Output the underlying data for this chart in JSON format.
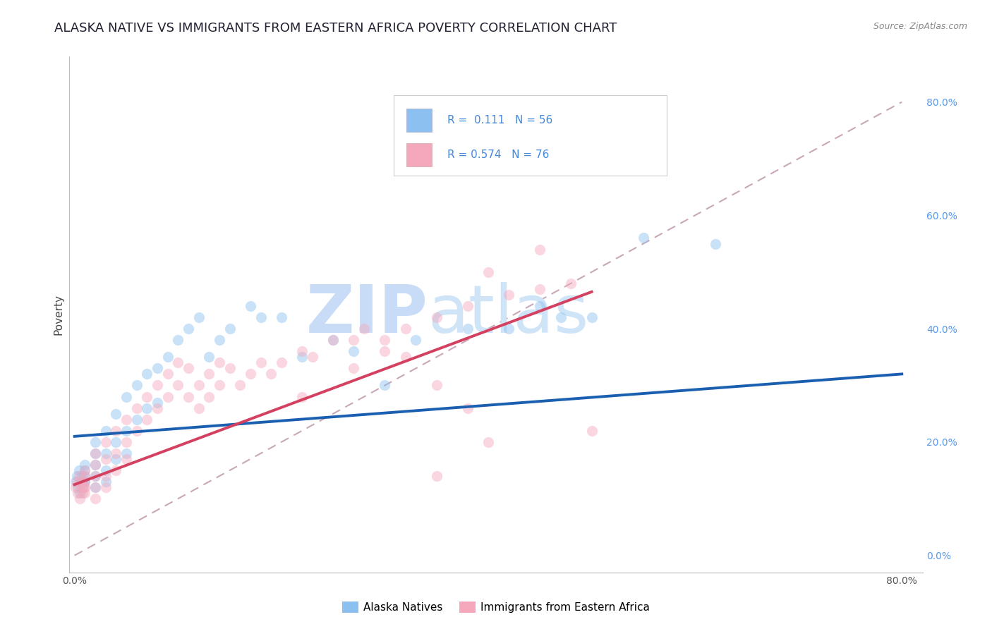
{
  "title": "ALASKA NATIVE VS IMMIGRANTS FROM EASTERN AFRICA POVERTY CORRELATION CHART",
  "source": "Source: ZipAtlas.com",
  "ylabel_label": "Poverty",
  "x_ticks": [
    0.0,
    0.8
  ],
  "x_tick_labels": [
    "0.0%",
    "80.0%"
  ],
  "y_ticks_right": [
    0.0,
    0.2,
    0.4,
    0.6,
    0.8
  ],
  "y_tick_right_labels": [
    "0.0%",
    "20.0%",
    "40.0%",
    "60.0%",
    "80.0%"
  ],
  "xlim": [
    -0.005,
    0.82
  ],
  "ylim": [
    -0.03,
    0.88
  ],
  "blue_R": 0.111,
  "blue_N": 56,
  "pink_R": 0.574,
  "pink_N": 76,
  "blue_color": "#8BC0F0",
  "pink_color": "#F5A8BC",
  "blue_line_color": "#1A5FB0",
  "pink_line_color": "#D44060",
  "diag_line_color": "#C8A8B8",
  "watermark_zip_color": "#C8DCF0",
  "watermark_atlas_color": "#C0D8F0",
  "legend_label_blue": "Alaska Natives",
  "legend_label_pink": "Immigrants from Eastern Africa",
  "blue_scatter_x": [
    0.001,
    0.002,
    0.003,
    0.004,
    0.005,
    0.006,
    0.007,
    0.008,
    0.009,
    0.01,
    0.01,
    0.01,
    0.01,
    0.02,
    0.02,
    0.02,
    0.02,
    0.02,
    0.03,
    0.03,
    0.03,
    0.03,
    0.04,
    0.04,
    0.04,
    0.05,
    0.05,
    0.05,
    0.06,
    0.06,
    0.07,
    0.07,
    0.08,
    0.08,
    0.09,
    0.1,
    0.11,
    0.12,
    0.13,
    0.14,
    0.15,
    0.17,
    0.18,
    0.2,
    0.22,
    0.25,
    0.27,
    0.3,
    0.33,
    0.38,
    0.42,
    0.45,
    0.47,
    0.5,
    0.55,
    0.62
  ],
  "blue_scatter_y": [
    0.13,
    0.14,
    0.12,
    0.15,
    0.11,
    0.13,
    0.14,
    0.12,
    0.13,
    0.16,
    0.14,
    0.15,
    0.13,
    0.2,
    0.18,
    0.16,
    0.14,
    0.12,
    0.22,
    0.18,
    0.15,
    0.13,
    0.25,
    0.2,
    0.17,
    0.28,
    0.22,
    0.18,
    0.3,
    0.24,
    0.32,
    0.26,
    0.33,
    0.27,
    0.35,
    0.38,
    0.4,
    0.42,
    0.35,
    0.38,
    0.4,
    0.44,
    0.42,
    0.42,
    0.35,
    0.38,
    0.36,
    0.3,
    0.38,
    0.4,
    0.4,
    0.44,
    0.42,
    0.42,
    0.56,
    0.55
  ],
  "pink_scatter_x": [
    0.001,
    0.002,
    0.003,
    0.004,
    0.005,
    0.006,
    0.007,
    0.008,
    0.009,
    0.01,
    0.01,
    0.01,
    0.01,
    0.01,
    0.02,
    0.02,
    0.02,
    0.02,
    0.02,
    0.03,
    0.03,
    0.03,
    0.03,
    0.04,
    0.04,
    0.04,
    0.05,
    0.05,
    0.05,
    0.06,
    0.06,
    0.07,
    0.07,
    0.08,
    0.08,
    0.09,
    0.09,
    0.1,
    0.1,
    0.11,
    0.11,
    0.12,
    0.12,
    0.13,
    0.13,
    0.14,
    0.14,
    0.15,
    0.16,
    0.17,
    0.18,
    0.19,
    0.2,
    0.22,
    0.23,
    0.25,
    0.27,
    0.28,
    0.3,
    0.32,
    0.35,
    0.38,
    0.4,
    0.42,
    0.45,
    0.48,
    0.5,
    0.22,
    0.27,
    0.3,
    0.32,
    0.35,
    0.38,
    0.4,
    0.35,
    0.45
  ],
  "pink_scatter_y": [
    0.12,
    0.13,
    0.11,
    0.14,
    0.1,
    0.12,
    0.13,
    0.11,
    0.12,
    0.15,
    0.13,
    0.14,
    0.12,
    0.11,
    0.18,
    0.16,
    0.14,
    0.12,
    0.1,
    0.2,
    0.17,
    0.14,
    0.12,
    0.22,
    0.18,
    0.15,
    0.24,
    0.2,
    0.17,
    0.26,
    0.22,
    0.28,
    0.24,
    0.3,
    0.26,
    0.32,
    0.28,
    0.34,
    0.3,
    0.33,
    0.28,
    0.3,
    0.26,
    0.32,
    0.28,
    0.34,
    0.3,
    0.33,
    0.3,
    0.32,
    0.34,
    0.32,
    0.34,
    0.36,
    0.35,
    0.38,
    0.38,
    0.4,
    0.38,
    0.4,
    0.42,
    0.44,
    0.5,
    0.46,
    0.54,
    0.48,
    0.22,
    0.28,
    0.33,
    0.36,
    0.35,
    0.3,
    0.26,
    0.2,
    0.14,
    0.47
  ],
  "blue_trend_x": [
    0.0,
    0.8
  ],
  "blue_trend_y": [
    0.21,
    0.32
  ],
  "pink_trend_x": [
    0.0,
    0.5
  ],
  "pink_trend_y": [
    0.125,
    0.465
  ],
  "diag_line_x": [
    0.0,
    0.8
  ],
  "diag_line_y": [
    0.0,
    0.8
  ],
  "grid_color": "#DDDDDD",
  "background_color": "#FFFFFF",
  "title_fontsize": 13,
  "axis_label_fontsize": 11,
  "tick_fontsize": 10,
  "legend_fontsize": 11,
  "scatter_size": 120,
  "scatter_alpha": 0.45,
  "scatter_edgewidth": 0
}
